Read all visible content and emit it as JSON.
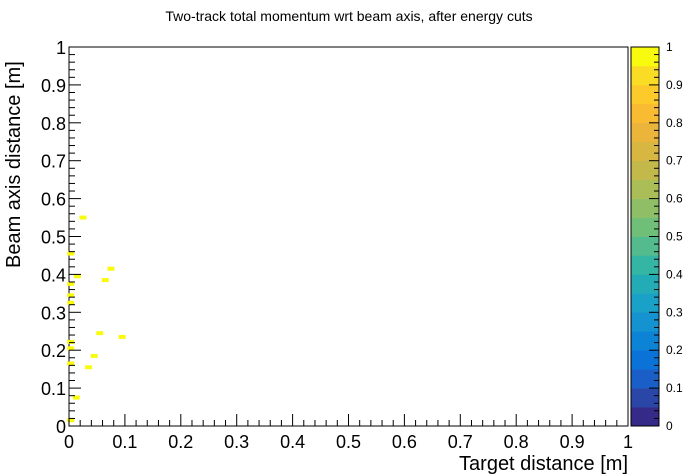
{
  "chart_data": {
    "type": "heatmap",
    "title": "Two-track total momentum wrt beam axis, after energy cuts",
    "xlabel": "Target distance [m]",
    "ylabel": "Beam axis distance [m]",
    "xlim": [
      0,
      1
    ],
    "ylim": [
      0,
      1
    ],
    "x_ticks": [
      "0",
      "0.1",
      "0.2",
      "0.3",
      "0.4",
      "0.5",
      "0.6",
      "0.7",
      "0.8",
      "0.9",
      "1"
    ],
    "y_ticks": [
      "0",
      "0.1",
      "0.2",
      "0.3",
      "0.4",
      "0.5",
      "0.6",
      "0.7",
      "0.8",
      "0.9",
      "1"
    ],
    "colorbar": {
      "range": [
        0,
        1
      ],
      "ticks": [
        "0",
        "0.1",
        "0.2",
        "0.3",
        "0.4",
        "0.5",
        "0.6",
        "0.7",
        "0.8",
        "0.9",
        "1"
      ],
      "palette": [
        "#352a87",
        "#2a47a8",
        "#1a5fc7",
        "#0b73d8",
        "#0d83d6",
        "#1592d0",
        "#1aa1c7",
        "#23acb6",
        "#35b5a3",
        "#53bb8d",
        "#70bf78",
        "#8ebf66",
        "#aabd57",
        "#c3b94b",
        "#d8b642",
        "#ebb53c",
        "#f8bb32",
        "#fcca2b",
        "#fadc24",
        "#f9fb0e"
      ]
    },
    "points": [
      {
        "x": 0.003,
        "y": 0.015,
        "value": 1
      },
      {
        "x": 0.013,
        "y": 0.075,
        "value": 1
      },
      {
        "x": 0.003,
        "y": 0.165,
        "value": 1
      },
      {
        "x": 0.003,
        "y": 0.205,
        "value": 1
      },
      {
        "x": 0.003,
        "y": 0.222,
        "value": 1
      },
      {
        "x": 0.035,
        "y": 0.155,
        "value": 1
      },
      {
        "x": 0.045,
        "y": 0.185,
        "value": 1
      },
      {
        "x": 0.055,
        "y": 0.245,
        "value": 1
      },
      {
        "x": 0.095,
        "y": 0.235,
        "value": 1
      },
      {
        "x": 0.003,
        "y": 0.325,
        "value": 1
      },
      {
        "x": 0.003,
        "y": 0.345,
        "value": 1
      },
      {
        "x": 0.003,
        "y": 0.375,
        "value": 1
      },
      {
        "x": 0.015,
        "y": 0.395,
        "value": 1
      },
      {
        "x": 0.065,
        "y": 0.385,
        "value": 1
      },
      {
        "x": 0.075,
        "y": 0.415,
        "value": 1
      },
      {
        "x": 0.003,
        "y": 0.455,
        "value": 1
      },
      {
        "x": 0.025,
        "y": 0.55,
        "value": 1
      }
    ]
  }
}
